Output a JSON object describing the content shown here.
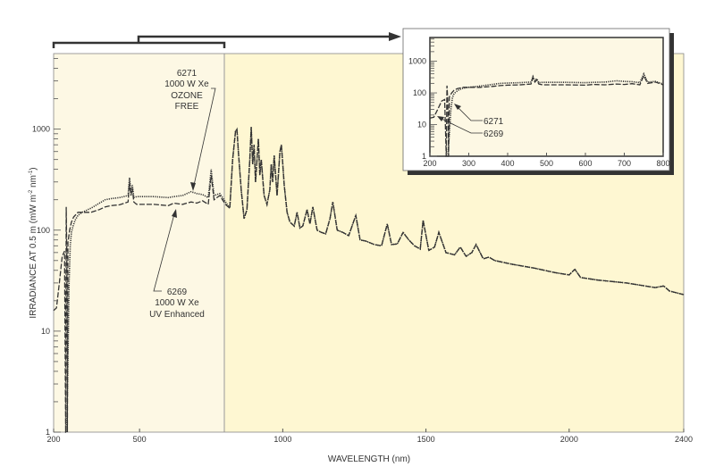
{
  "chart_data": {
    "type": "line",
    "title": "",
    "xlabel": "WAVELENGTH (nm)",
    "ylabel": "IRRADIANCE AT 0.5 m (mW m-2 nm-1)",
    "ylabel_parts": {
      "main": "IRRADIANCE AT 0.5 m (mW m",
      "sup1": "-2",
      "mid": " nm",
      "sup2": "-1",
      "end": ")"
    },
    "xlim": [
      200,
      2400
    ],
    "ylim": [
      1,
      5600
    ],
    "yscale": "log",
    "x_ticks": [
      "200",
      "500",
      "1000",
      "1500",
      "2000",
      "2400"
    ],
    "x_tick_values": [
      200,
      500,
      1000,
      1500,
      2000,
      2400
    ],
    "y_ticks": [
      "1",
      "10",
      "100",
      "1000"
    ],
    "y_tick_values": [
      1,
      10,
      100,
      1000
    ],
    "series": [
      {
        "name": "6269 1000 W Xe UV Enhanced",
        "style": "dashed",
        "x": [
          200,
          210,
          220,
          230,
          238,
          242,
          244,
          246,
          248,
          250,
          256,
          262,
          270,
          285,
          300,
          330,
          360,
          380,
          400,
          430,
          460,
          465,
          470,
          475,
          480,
          490,
          500,
          550,
          600,
          620,
          650,
          680,
          700,
          720,
          740,
          750,
          760,
          780,
          800
        ],
        "y": [
          16,
          17,
          30,
          55,
          62,
          1,
          170,
          60,
          1,
          75,
          100,
          120,
          135,
          150,
          150,
          150,
          160,
          170,
          175,
          178,
          190,
          300,
          220,
          260,
          190,
          180,
          180,
          180,
          175,
          185,
          180,
          190,
          185,
          195,
          180,
          350,
          200,
          220,
          180
        ]
      },
      {
        "name": "6271 1000 W Xe OZONE FREE",
        "style": "dotted",
        "x": [
          240,
          246,
          250,
          254,
          258,
          262,
          268,
          275,
          285,
          300,
          330,
          360,
          380,
          400,
          430,
          460,
          465,
          470,
          475,
          480,
          490,
          500,
          550,
          600,
          620,
          650,
          680,
          700,
          720,
          740,
          750,
          760,
          780,
          800
        ],
        "y": [
          1,
          1,
          5,
          30,
          70,
          95,
          110,
          125,
          140,
          150,
          165,
          185,
          200,
          205,
          210,
          220,
          330,
          240,
          280,
          210,
          215,
          215,
          215,
          210,
          215,
          220,
          240,
          230,
          225,
          210,
          400,
          220,
          230,
          190
        ]
      }
    ],
    "common_ir": {
      "x": [
        800,
        815,
        825,
        835,
        840,
        845,
        855,
        865,
        875,
        885,
        890,
        895,
        900,
        905,
        915,
        920,
        925,
        935,
        945,
        955,
        960,
        965,
        970,
        980,
        990,
        995,
        1000,
        1005,
        1015,
        1025,
        1040,
        1050,
        1060,
        1070,
        1085,
        1095,
        1105,
        1120,
        1135,
        1150,
        1165,
        1175,
        1190,
        1210,
        1230,
        1255,
        1270,
        1290,
        1320,
        1345,
        1365,
        1380,
        1400,
        1420,
        1440,
        1460,
        1480,
        1490,
        1510,
        1530,
        1545,
        1570,
        1600,
        1620,
        1640,
        1660,
        1675,
        1700,
        1720,
        1740,
        1800,
        1880,
        1950,
        2000,
        2020,
        2040,
        2100,
        2200,
        2300,
        2330,
        2350,
        2400
      ],
      "y": [
        180,
        165,
        500,
        950,
        1000,
        600,
        250,
        130,
        160,
        500,
        1050,
        450,
        700,
        300,
        800,
        350,
        500,
        220,
        180,
        250,
        450,
        300,
        550,
        220,
        600,
        700,
        450,
        280,
        150,
        120,
        110,
        150,
        105,
        110,
        160,
        115,
        170,
        100,
        95,
        92,
        130,
        190,
        100,
        95,
        88,
        140,
        80,
        78,
        72,
        70,
        115,
        72,
        73,
        95,
        80,
        70,
        65,
        125,
        63,
        68,
        95,
        60,
        57,
        68,
        55,
        60,
        72,
        52,
        54,
        50,
        46,
        42,
        38,
        36,
        41,
        34,
        32,
        30,
        27,
        28,
        25,
        23
      ]
    },
    "annotations": [
      {
        "lines": [
          "6271",
          "1000 W Xe",
          "OZONE",
          "FREE"
        ],
        "points_to": "6271 curve at ~650 nm"
      },
      {
        "lines": [
          "6269",
          "1000 W Xe",
          "UV Enhanced"
        ],
        "points_to": "6269 curve at ~560 nm"
      }
    ],
    "inset": {
      "xlim": [
        200,
        800
      ],
      "ylim": [
        1,
        5600
      ],
      "x_ticks": [
        "200",
        "300",
        "400",
        "500",
        "600",
        "700",
        "800"
      ],
      "x_tick_values": [
        200,
        300,
        400,
        500,
        600,
        700,
        800
      ],
      "y_ticks": [
        "1",
        "10",
        "100",
        "1000"
      ],
      "y_tick_values": [
        1,
        10,
        100,
        1000
      ],
      "labels": [
        "6271",
        "6269"
      ]
    },
    "colors": {
      "plot_bg_uv": "#fdf8e4",
      "plot_bg_ir": "#fef7d2",
      "line": "#333333",
      "axis": "#666666"
    }
  }
}
